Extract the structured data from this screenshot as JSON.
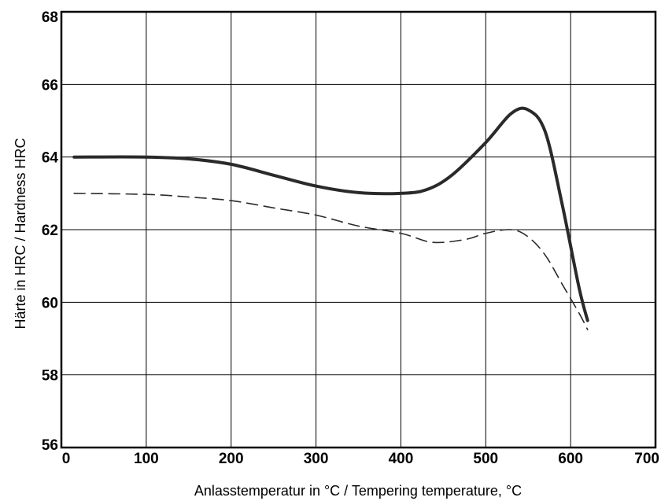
{
  "chart_data": {
    "type": "line",
    "xlabel": "Anlasstemperatur in °C / Tempering temperature, °C",
    "ylabel": "Härte in HRC / Hardness HRC",
    "xlim": [
      0,
      700
    ],
    "ylim": [
      56,
      68
    ],
    "xticks": [
      0,
      100,
      200,
      300,
      400,
      500,
      600,
      700
    ],
    "yticks": [
      56,
      58,
      60,
      62,
      64,
      66,
      68
    ],
    "grid": true,
    "series": [
      {
        "style": "solid",
        "color": "#2a2a2a",
        "x": [
          15,
          100,
          150,
          200,
          250,
          300,
          350,
          400,
          430,
          460,
          500,
          530,
          550,
          570,
          590,
          610,
          620
        ],
        "y": [
          64.0,
          64.0,
          63.95,
          63.8,
          63.5,
          63.2,
          63.02,
          63.0,
          63.1,
          63.5,
          64.4,
          65.2,
          65.3,
          64.7,
          62.7,
          60.4,
          59.5
        ]
      },
      {
        "style": "dashed",
        "color": "#2a2a2a",
        "x": [
          15,
          100,
          150,
          200,
          250,
          300,
          350,
          400,
          430,
          450,
          480,
          500,
          530,
          550,
          570,
          590,
          610,
          620
        ],
        "y": [
          63.0,
          62.97,
          62.9,
          62.8,
          62.6,
          62.4,
          62.1,
          61.9,
          61.68,
          61.65,
          61.75,
          61.9,
          62.0,
          61.8,
          61.3,
          60.5,
          59.7,
          59.25
        ]
      }
    ]
  }
}
